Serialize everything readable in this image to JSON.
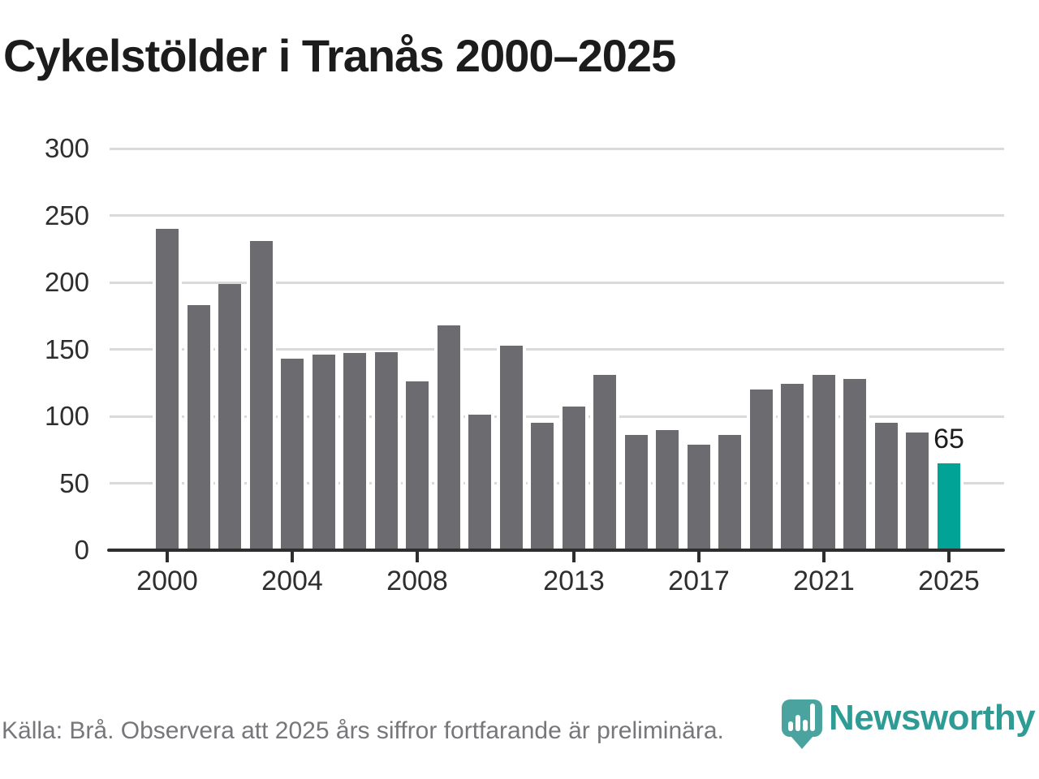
{
  "title": "Cykelstölder i Tranås 2000–2025",
  "footer": {
    "source_note": "Källa: Brå. Observera att 2025 års siffror fortfarande är preliminära."
  },
  "branding": {
    "logo_text": "Newsworthy",
    "logo_text_color": "#2f9b95",
    "badge_color": "#4ba3a0"
  },
  "chart_data": {
    "type": "bar",
    "title": "Cykelstölder i Tranås 2000–2025",
    "x": [
      2000,
      2001,
      2002,
      2003,
      2004,
      2005,
      2006,
      2007,
      2008,
      2009,
      2010,
      2011,
      2012,
      2013,
      2014,
      2015,
      2016,
      2017,
      2018,
      2019,
      2020,
      2021,
      2022,
      2023,
      2024,
      2025
    ],
    "values": [
      240,
      183,
      199,
      231,
      143,
      146,
      147,
      148,
      126,
      168,
      101,
      153,
      95,
      107,
      131,
      86,
      90,
      79,
      86,
      120,
      124,
      131,
      128,
      95,
      88,
      65
    ],
    "highlight_year": 2025,
    "highlight_value_label": "65",
    "bar_color": "#6b6b70",
    "highlight_color": "#00a396",
    "grid_color": "#dadada",
    "axis_color": "#2e2e2e",
    "xlabel": "",
    "ylabel": "",
    "ylim": [
      0,
      300
    ],
    "yticks": [
      0,
      50,
      100,
      150,
      200,
      250,
      300
    ],
    "xticks": [
      2000,
      2004,
      2008,
      2013,
      2017,
      2021,
      2025
    ],
    "grid": "horizontal",
    "legend": "none"
  }
}
